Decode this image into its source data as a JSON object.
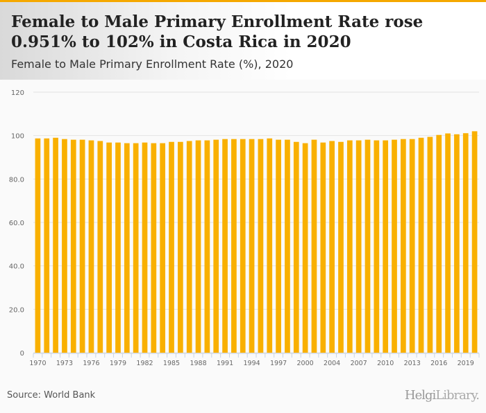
{
  "header": {
    "title": "Female to Male Primary Enrollment Rate rose 0.951% to 102% in Costa Rica in 2020",
    "subtitle": "Female to Male Primary Enrollment Rate (%), 2020"
  },
  "footer": {
    "source": "Source: World Bank",
    "logo": "HelgiLibrary",
    "logo_a": "Helgi",
    "logo_b": "Library."
  },
  "colors": {
    "bar": "#f9b000",
    "accent": "#f5a800",
    "grid": "#e3e3e3"
  },
  "chart_data": {
    "type": "bar",
    "title": "Female to Male Primary Enrollment Rate (%), 2020",
    "xlabel": "",
    "ylabel": "",
    "ylim": [
      0,
      120
    ],
    "yticks": [
      0,
      20,
      40,
      60,
      80,
      100,
      120
    ],
    "ytick_labels": [
      "0",
      "20.0",
      "40.0",
      "60.0",
      "80.0",
      "100",
      "120"
    ],
    "categories": [
      1970,
      1971,
      1972,
      1973,
      1974,
      1975,
      1976,
      1977,
      1978,
      1979,
      1980,
      1981,
      1982,
      1983,
      1984,
      1985,
      1986,
      1987,
      1988,
      1989,
      1990,
      1991,
      1992,
      1993,
      1994,
      1995,
      1996,
      1997,
      1998,
      1999,
      2000,
      2002,
      2003,
      2004,
      2005,
      2006,
      2007,
      2008,
      2009,
      2010,
      2011,
      2012,
      2013,
      2014,
      2015,
      2016,
      2017,
      2018,
      2019,
      2020
    ],
    "xtick_labels": [
      "1970",
      "1973",
      "1976",
      "1979",
      "1982",
      "1985",
      "1988",
      "1991",
      "1994",
      "1997",
      "2000",
      "2004",
      "2007",
      "2010",
      "2013",
      "2016",
      "2019"
    ],
    "values": [
      98.7,
      98.7,
      99.0,
      98.4,
      98.1,
      98.1,
      97.8,
      97.5,
      96.8,
      96.8,
      96.5,
      96.5,
      96.8,
      96.5,
      96.5,
      97.1,
      97.1,
      97.5,
      97.8,
      97.8,
      98.1,
      98.4,
      98.4,
      98.4,
      98.4,
      98.4,
      98.7,
      98.1,
      98.1,
      97.1,
      96.5,
      98.1,
      96.8,
      97.5,
      97.1,
      97.8,
      97.8,
      98.1,
      97.8,
      97.8,
      98.1,
      98.4,
      98.4,
      99.0,
      99.4,
      100.3,
      101.0,
      100.6,
      101.1,
      102.0
    ],
    "grid": true,
    "legend": "none"
  }
}
